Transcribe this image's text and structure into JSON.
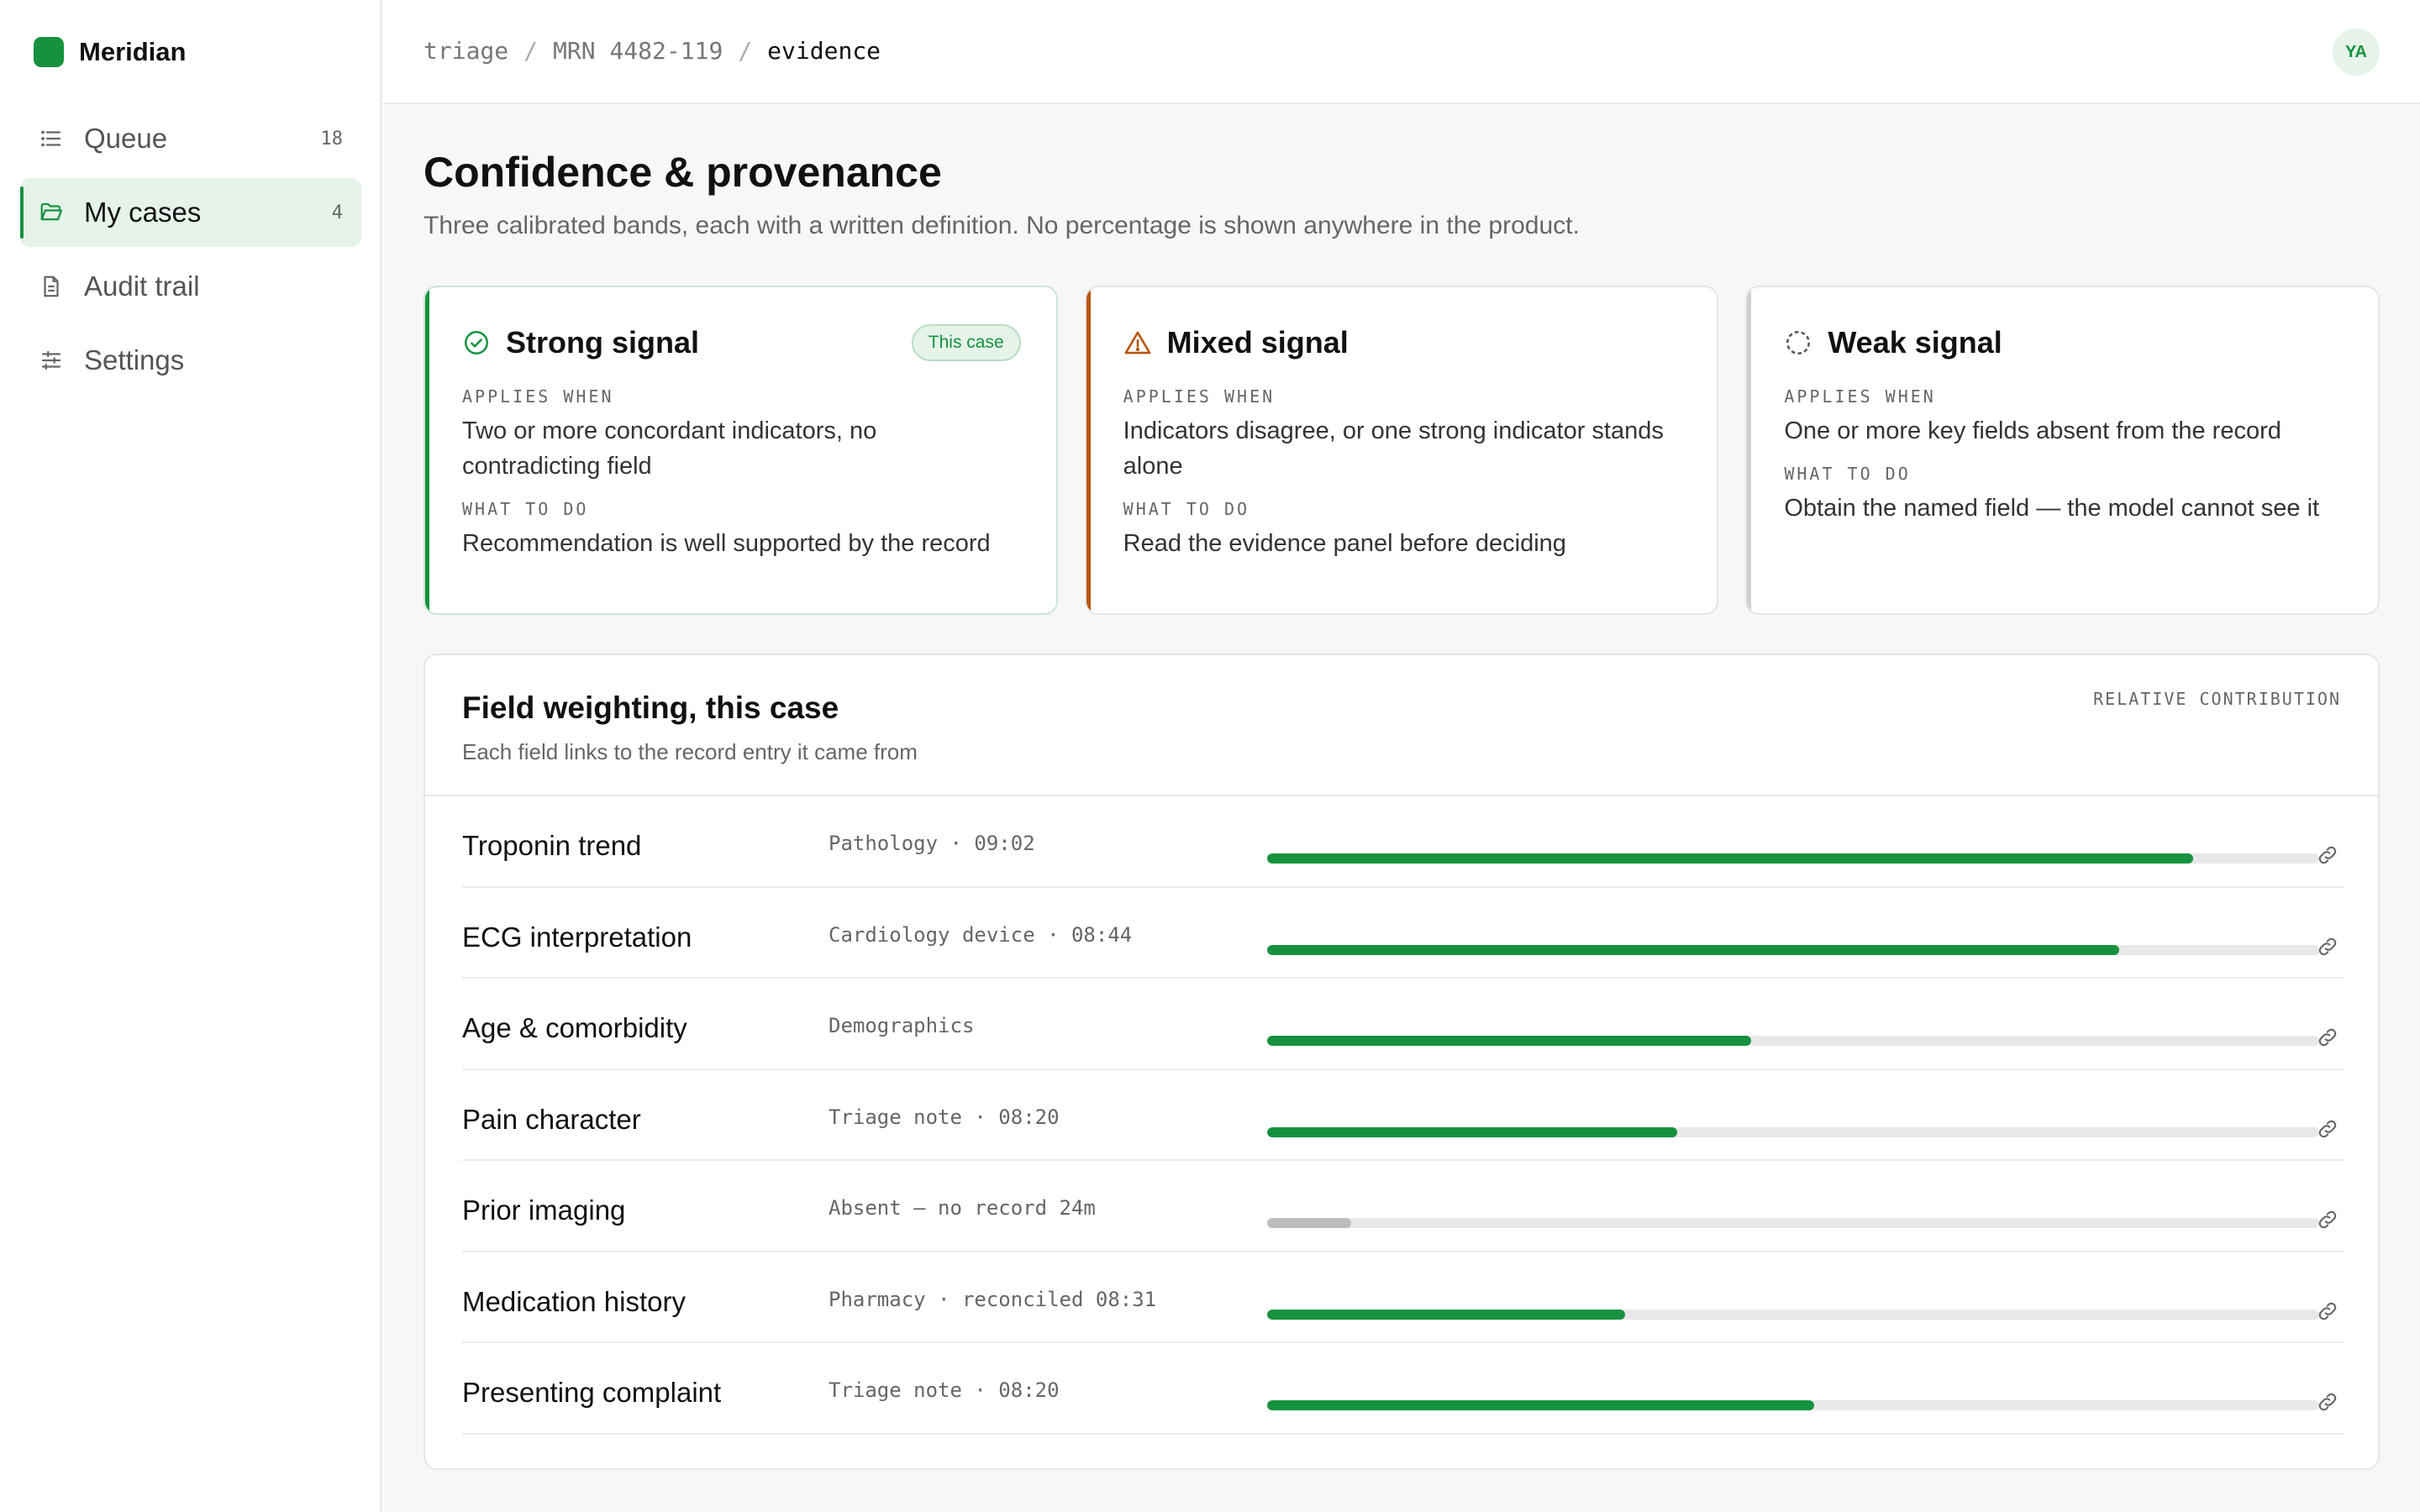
{
  "app": {
    "name": "Meridian"
  },
  "sidebar": {
    "items": [
      {
        "label": "Queue",
        "count": "18",
        "icon": "list-icon"
      },
      {
        "label": "My cases",
        "count": "4",
        "icon": "folder-open-icon"
      },
      {
        "label": "Audit trail",
        "count": "",
        "icon": "document-icon"
      },
      {
        "label": "Settings",
        "count": "",
        "icon": "sliders-icon"
      }
    ]
  },
  "header": {
    "breadcrumb": [
      "triage",
      "MRN 4482-119",
      "evidence"
    ],
    "avatar": "YA"
  },
  "page": {
    "title": "Confidence & provenance",
    "subtitle": "Three calibrated bands, each with a written definition. No percentage is shown anywhere in the product."
  },
  "bands": [
    {
      "title": "Strong signal",
      "badge": "This case",
      "applies_label": "APPLIES WHEN",
      "applies": "Two or more concordant indicators, no contradicting field",
      "todo_label": "WHAT TO DO",
      "todo": "Recommendation is well supported by the record",
      "icon": "check-circle-icon",
      "color": "#16923f"
    },
    {
      "title": "Mixed signal",
      "badge": "",
      "applies_label": "APPLIES WHEN",
      "applies": "Indicators disagree, or one strong indicator stands alone",
      "todo_label": "WHAT TO DO",
      "todo": "Read the evidence panel before deciding",
      "icon": "warning-triangle-icon",
      "color": "#b8560f"
    },
    {
      "title": "Weak signal",
      "badge": "",
      "applies_label": "APPLIES WHEN",
      "applies": "One or more key fields absent from the record",
      "todo_label": "WHAT TO DO",
      "todo": "Obtain the named field — the model cannot see it",
      "icon": "dashed-circle-icon",
      "color": "#cfcfcf"
    }
  ],
  "weights": {
    "title": "Field weighting, this case",
    "subtitle": "Each field links to the record entry it came from",
    "tag": "RELATIVE CONTRIBUTION",
    "rows": [
      {
        "name": "Troponin trend",
        "source": "Pathology · 09:02",
        "contribution": 0.88,
        "absent": false
      },
      {
        "name": "ECG interpretation",
        "source": "Cardiology device · 08:44",
        "contribution": 0.81,
        "absent": false
      },
      {
        "name": "Age & comorbidity",
        "source": "Demographics",
        "contribution": 0.46,
        "absent": false
      },
      {
        "name": "Pain character",
        "source": "Triage note · 08:20",
        "contribution": 0.39,
        "absent": false
      },
      {
        "name": "Prior imaging",
        "source": "Absent — no record 24m",
        "contribution": 0.08,
        "absent": true
      },
      {
        "name": "Medication history",
        "source": "Pharmacy · reconciled 08:31",
        "contribution": 0.34,
        "absent": false
      },
      {
        "name": "Presenting complaint",
        "source": "Triage note · 08:20",
        "contribution": 0.52,
        "absent": false
      }
    ]
  }
}
